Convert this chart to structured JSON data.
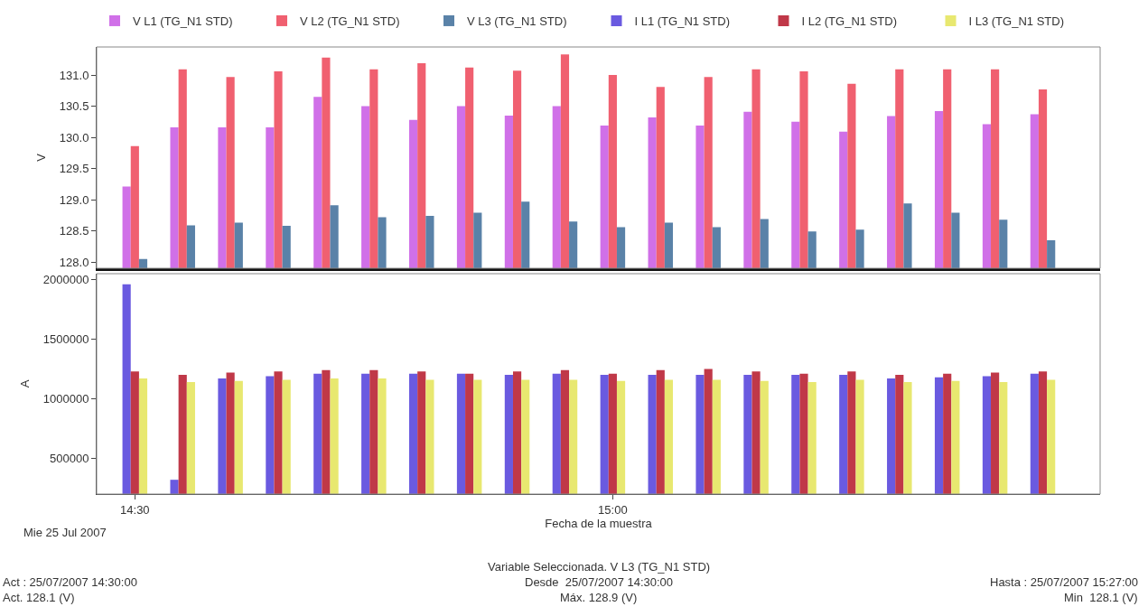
{
  "chart_data": [
    {
      "type": "bar",
      "ylabel": "V",
      "tick_labels": "y",
      "x": [
        14.5,
        14.55,
        14.6,
        14.65,
        14.7,
        14.75,
        14.8,
        14.85,
        14.9,
        14.95,
        15,
        15.05,
        15.1,
        15.15,
        15.2,
        15.25,
        15.3,
        15.35,
        15.4,
        15.45
      ],
      "xlim": [
        14.46,
        15.51
      ],
      "ylim": [
        127.9,
        131.45
      ],
      "yticks": [
        {
          "value": 128,
          "label": "128.0"
        },
        128.5,
        {
          "value": 129,
          "label": "129.0"
        },
        129.5,
        {
          "value": 130,
          "label": "130.0"
        },
        130.5,
        {
          "value": 131,
          "label": "131.0"
        }
      ],
      "series": [
        {
          "name": "V L1 (TG_N1 STD)",
          "color": "#d070e8",
          "values": [
            129.21,
            130.16,
            130.16,
            130.16,
            130.65,
            130.5,
            130.28,
            130.5,
            130.35,
            130.5,
            130.19,
            130.32,
            130.19,
            130.41,
            130.25,
            130.09,
            130.34,
            130.42,
            130.21,
            130.37
          ]
        },
        {
          "name": "V L2 (TG_N1 STD)",
          "color": "#f06070",
          "values": [
            129.86,
            131.09,
            130.97,
            131.06,
            131.28,
            131.09,
            131.19,
            131.12,
            131.07,
            131.33,
            131.0,
            130.81,
            130.97,
            131.09,
            131.06,
            130.86,
            131.09,
            131.09,
            131.09,
            130.77
          ]
        },
        {
          "name": "V L3 (TG_N1 STD)",
          "color": "#5a82a8",
          "values": [
            128.05,
            128.59,
            128.63,
            128.58,
            128.91,
            128.72,
            128.74,
            128.79,
            128.97,
            128.65,
            128.56,
            128.63,
            128.56,
            128.69,
            128.49,
            128.52,
            128.94,
            128.79,
            128.68,
            128.35
          ]
        }
      ],
      "legend": "top"
    },
    {
      "type": "bar",
      "ylabel": "A",
      "xlabel": "Fecha de la muestra",
      "x": [
        14.5,
        14.55,
        14.6,
        14.65,
        14.7,
        14.75,
        14.8,
        14.85,
        14.9,
        14.95,
        15,
        15.05,
        15.1,
        15.15,
        15.2,
        15.25,
        15.3,
        15.35,
        15.4,
        15.45
      ],
      "xlim": [
        14.46,
        15.51
      ],
      "xticks": [
        {
          "value": 14.5,
          "label": "14:30"
        },
        {
          "value": 15,
          "label": "15:00"
        }
      ],
      "ylim": [
        200000,
        2050000
      ],
      "yticks": [
        500000,
        1000000,
        1500000,
        2000000
      ],
      "series": [
        {
          "name": "I L1 (TG_N1 STD)",
          "color": "#6a5ae0",
          "values": [
            1960000,
            320000,
            1170000,
            1190000,
            1210000,
            1210000,
            1210000,
            1210000,
            1200000,
            1210000,
            1200000,
            1200000,
            1200000,
            1200000,
            1200000,
            1200000,
            1170000,
            1180000,
            1190000,
            1210000
          ]
        },
        {
          "name": "I L2 (TG_N1 STD)",
          "color": "#c03848",
          "values": [
            1230000,
            1200000,
            1220000,
            1230000,
            1240000,
            1240000,
            1230000,
            1210000,
            1230000,
            1240000,
            1210000,
            1240000,
            1250000,
            1230000,
            1210000,
            1230000,
            1200000,
            1210000,
            1220000,
            1230000
          ]
        },
        {
          "name": "I L3 (TG_N1 STD)",
          "color": "#e8e870",
          "values": [
            1170000,
            1140000,
            1150000,
            1160000,
            1170000,
            1170000,
            1160000,
            1160000,
            1160000,
            1160000,
            1150000,
            1160000,
            1160000,
            1150000,
            1140000,
            1160000,
            1140000,
            1150000,
            1140000,
            1160000
          ]
        }
      ],
      "legend": "top",
      "annotations": [
        "Mie 25 Jul 2007",
        "Variable Seleccionada. V L3 (TG_N1 STD)",
        "Act : 25/07/2007 14:30:00",
        "Desde  25/07/2007 14:30:00",
        "Hasta : 25/07/2007 15:27:00",
        "Act. 128.1 (V)",
        "Máx. 128.9 (V)",
        "Min  128.1 (V)"
      ]
    }
  ]
}
